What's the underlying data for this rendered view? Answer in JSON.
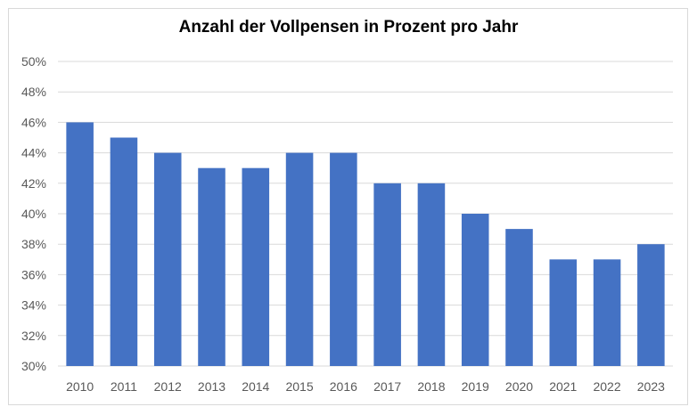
{
  "chart_data": {
    "type": "bar",
    "title": "Anzahl der Vollpensen in Prozent pro Jahr",
    "xlabel": "",
    "ylabel": "",
    "categories": [
      "2010",
      "2011",
      "2012",
      "2013",
      "2014",
      "2015",
      "2016",
      "2017",
      "2018",
      "2019",
      "2020",
      "2021",
      "2022",
      "2023"
    ],
    "values": [
      46,
      45,
      44,
      43,
      43,
      44,
      44,
      42,
      42,
      40,
      39,
      37,
      37,
      38
    ],
    "ylim": [
      30,
      50
    ],
    "yticks": [
      30,
      32,
      34,
      36,
      38,
      40,
      42,
      44,
      46,
      48,
      50
    ],
    "ytick_suffix": "%",
    "grid": true,
    "legend": "none",
    "bar_color": "#4472c4",
    "grid_color": "#d9d9d9"
  }
}
